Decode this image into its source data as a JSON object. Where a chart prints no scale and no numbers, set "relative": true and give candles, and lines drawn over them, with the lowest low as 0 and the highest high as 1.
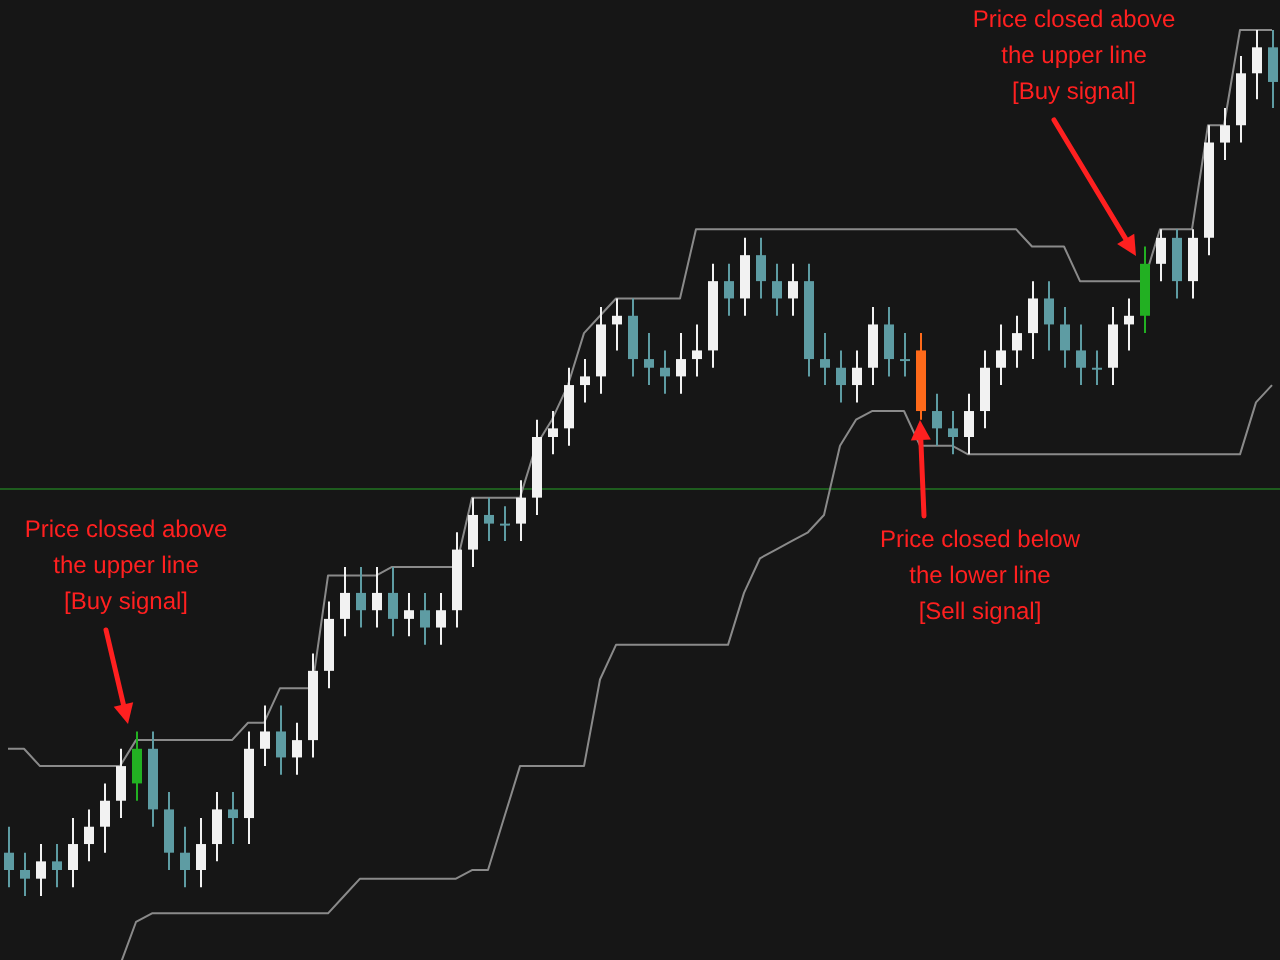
{
  "chart_data": {
    "type": "candlestick",
    "relative": true,
    "categories": [
      null,
      null,
      null,
      null,
      null,
      null,
      null,
      null,
      null,
      null,
      null,
      null,
      null,
      null,
      null,
      null,
      null,
      null,
      null,
      null,
      null,
      null,
      null,
      null,
      null,
      null,
      null,
      null,
      null,
      null,
      null,
      null,
      null,
      null,
      null,
      null,
      null,
      null,
      null,
      null,
      null,
      null,
      null,
      null,
      null,
      null,
      null,
      null,
      null,
      null,
      null,
      null,
      null,
      null,
      null,
      null,
      null,
      null,
      null,
      null,
      null,
      null,
      null,
      null,
      null,
      null,
      null,
      null,
      null,
      null,
      null,
      null,
      null,
      null,
      null,
      null,
      null,
      null,
      null,
      null
    ],
    "ohlc": [
      [
        0.05,
        0.08,
        0.01,
        0.03
      ],
      [
        0.03,
        0.05,
        0.0,
        0.02
      ],
      [
        0.02,
        0.06,
        0.0,
        0.04
      ],
      [
        0.04,
        0.06,
        0.01,
        0.03
      ],
      [
        0.03,
        0.09,
        0.01,
        0.06
      ],
      [
        0.06,
        0.1,
        0.04,
        0.08
      ],
      [
        0.08,
        0.13,
        0.05,
        0.11
      ],
      [
        0.11,
        0.17,
        0.09,
        0.15
      ],
      [
        0.13,
        0.19,
        0.11,
        0.17
      ],
      [
        0.17,
        0.19,
        0.08,
        0.1
      ],
      [
        0.1,
        0.12,
        0.03,
        0.05
      ],
      [
        0.05,
        0.08,
        0.01,
        0.03
      ],
      [
        0.03,
        0.09,
        0.01,
        0.06
      ],
      [
        0.06,
        0.12,
        0.04,
        0.1
      ],
      [
        0.1,
        0.12,
        0.06,
        0.09
      ],
      [
        0.09,
        0.19,
        0.06,
        0.17
      ],
      [
        0.17,
        0.22,
        0.15,
        0.19
      ],
      [
        0.19,
        0.22,
        0.14,
        0.16
      ],
      [
        0.16,
        0.2,
        0.14,
        0.18
      ],
      [
        0.18,
        0.28,
        0.16,
        0.26
      ],
      [
        0.26,
        0.34,
        0.24,
        0.32
      ],
      [
        0.32,
        0.38,
        0.3,
        0.35
      ],
      [
        0.35,
        0.38,
        0.31,
        0.33
      ],
      [
        0.33,
        0.38,
        0.31,
        0.35
      ],
      [
        0.35,
        0.38,
        0.3,
        0.32
      ],
      [
        0.32,
        0.35,
        0.3,
        0.33
      ],
      [
        0.33,
        0.35,
        0.29,
        0.31
      ],
      [
        0.31,
        0.35,
        0.29,
        0.33
      ],
      [
        0.33,
        0.42,
        0.31,
        0.4
      ],
      [
        0.4,
        0.46,
        0.38,
        0.44
      ],
      [
        0.44,
        0.46,
        0.41,
        0.43
      ],
      [
        0.43,
        0.45,
        0.41,
        0.43
      ],
      [
        0.43,
        0.48,
        0.41,
        0.46
      ],
      [
        0.46,
        0.55,
        0.44,
        0.53
      ],
      [
        0.53,
        0.56,
        0.51,
        0.54
      ],
      [
        0.54,
        0.61,
        0.52,
        0.59
      ],
      [
        0.59,
        0.62,
        0.57,
        0.6
      ],
      [
        0.6,
        0.68,
        0.58,
        0.66
      ],
      [
        0.66,
        0.69,
        0.63,
        0.67
      ],
      [
        0.67,
        0.69,
        0.6,
        0.62
      ],
      [
        0.62,
        0.65,
        0.59,
        0.61
      ],
      [
        0.61,
        0.63,
        0.58,
        0.6
      ],
      [
        0.6,
        0.65,
        0.58,
        0.62
      ],
      [
        0.62,
        0.66,
        0.6,
        0.63
      ],
      [
        0.63,
        0.73,
        0.61,
        0.71
      ],
      [
        0.71,
        0.73,
        0.67,
        0.69
      ],
      [
        0.69,
        0.76,
        0.67,
        0.74
      ],
      [
        0.74,
        0.76,
        0.69,
        0.71
      ],
      [
        0.71,
        0.73,
        0.67,
        0.69
      ],
      [
        0.69,
        0.73,
        0.67,
        0.71
      ],
      [
        0.71,
        0.73,
        0.6,
        0.62
      ],
      [
        0.62,
        0.65,
        0.59,
        0.61
      ],
      [
        0.61,
        0.63,
        0.57,
        0.59
      ],
      [
        0.59,
        0.63,
        0.57,
        0.61
      ],
      [
        0.61,
        0.68,
        0.59,
        0.66
      ],
      [
        0.66,
        0.68,
        0.6,
        0.62
      ],
      [
        0.62,
        0.65,
        0.6,
        0.62
      ],
      [
        0.63,
        0.65,
        0.55,
        0.56
      ],
      [
        0.56,
        0.58,
        0.52,
        0.54
      ],
      [
        0.54,
        0.56,
        0.51,
        0.53
      ],
      [
        0.53,
        0.58,
        0.51,
        0.56
      ],
      [
        0.56,
        0.63,
        0.54,
        0.61
      ],
      [
        0.61,
        0.66,
        0.59,
        0.63
      ],
      [
        0.63,
        0.67,
        0.61,
        0.65
      ],
      [
        0.65,
        0.71,
        0.62,
        0.69
      ],
      [
        0.69,
        0.71,
        0.63,
        0.66
      ],
      [
        0.66,
        0.68,
        0.61,
        0.63
      ],
      [
        0.63,
        0.66,
        0.59,
        0.61
      ],
      [
        0.61,
        0.63,
        0.59,
        0.61
      ],
      [
        0.61,
        0.68,
        0.59,
        0.66
      ],
      [
        0.66,
        0.69,
        0.63,
        0.67
      ],
      [
        0.67,
        0.75,
        0.65,
        0.73
      ],
      [
        0.73,
        0.77,
        0.71,
        0.76
      ],
      [
        0.76,
        0.77,
        0.69,
        0.71
      ],
      [
        0.71,
        0.77,
        0.69,
        0.76
      ],
      [
        0.76,
        0.89,
        0.74,
        0.87
      ],
      [
        0.87,
        0.91,
        0.85,
        0.89
      ],
      [
        0.89,
        0.97,
        0.87,
        0.95
      ],
      [
        0.95,
        1.0,
        0.92,
        0.98
      ],
      [
        0.98,
        1.0,
        0.91,
        0.94
      ]
    ],
    "colors": [
      "#5e9ca3",
      "#5e9ca3",
      "#f2f2f2",
      "#5e9ca3",
      "#f2f2f2",
      "#f2f2f2",
      "#f2f2f2",
      "#f2f2f2",
      "#22b022",
      "#5e9ca3",
      "#5e9ca3",
      "#5e9ca3",
      "#f2f2f2",
      "#f2f2f2",
      "#5e9ca3",
      "#f2f2f2",
      "#f2f2f2",
      "#5e9ca3",
      "#f2f2f2",
      "#f2f2f2",
      "#f2f2f2",
      "#f2f2f2",
      "#5e9ca3",
      "#f2f2f2",
      "#5e9ca3",
      "#f2f2f2",
      "#5e9ca3",
      "#f2f2f2",
      "#f2f2f2",
      "#f2f2f2",
      "#5e9ca3",
      "#5e9ca3",
      "#f2f2f2",
      "#f2f2f2",
      "#f2f2f2",
      "#f2f2f2",
      "#f2f2f2",
      "#f2f2f2",
      "#f2f2f2",
      "#5e9ca3",
      "#5e9ca3",
      "#5e9ca3",
      "#f2f2f2",
      "#f2f2f2",
      "#f2f2f2",
      "#5e9ca3",
      "#f2f2f2",
      "#5e9ca3",
      "#5e9ca3",
      "#f2f2f2",
      "#5e9ca3",
      "#5e9ca3",
      "#5e9ca3",
      "#f2f2f2",
      "#f2f2f2",
      "#5e9ca3",
      "#5e9ca3",
      "#ff6a1a",
      "#5e9ca3",
      "#5e9ca3",
      "#f2f2f2",
      "#f2f2f2",
      "#f2f2f2",
      "#f2f2f2",
      "#f2f2f2",
      "#5e9ca3",
      "#5e9ca3",
      "#5e9ca3",
      "#5e9ca3",
      "#f2f2f2",
      "#f2f2f2",
      "#22b022",
      "#f2f2f2",
      "#5e9ca3",
      "#f2f2f2",
      "#f2f2f2",
      "#f2f2f2",
      "#f2f2f2",
      "#f2f2f2",
      "#5e9ca3"
    ],
    "series": [
      {
        "type": "line",
        "color": "#8a8a8a",
        "values": [
          0.17,
          0.17,
          0.15,
          0.15,
          0.15,
          0.15,
          0.15,
          0.15,
          0.18,
          0.18,
          0.18,
          0.18,
          0.18,
          0.18,
          0.18,
          0.2,
          0.2,
          0.24,
          0.24,
          0.24,
          0.37,
          0.37,
          0.37,
          0.37,
          0.38,
          0.38,
          0.38,
          0.38,
          0.38,
          0.46,
          0.46,
          0.46,
          0.46,
          0.52,
          0.55,
          0.59,
          0.65,
          0.67,
          0.69,
          0.69,
          0.69,
          0.69,
          0.69,
          0.77,
          0.77,
          0.77,
          0.77,
          0.77,
          0.77,
          0.77,
          0.77,
          0.77,
          0.77,
          0.77,
          0.77,
          0.77,
          0.77,
          0.77,
          0.77,
          0.77,
          0.77,
          0.77,
          0.77,
          0.77,
          0.75,
          0.75,
          0.75,
          0.71,
          0.71,
          0.71,
          0.71,
          0.71,
          0.77,
          0.77,
          0.77,
          0.89,
          0.89,
          1.0,
          1.0,
          1.0
        ]
      },
      {
        "type": "line",
        "color": "#8a8a8a",
        "values": [
          null,
          null,
          null,
          null,
          null,
          null,
          null,
          -0.08,
          -0.03,
          -0.02,
          -0.02,
          -0.02,
          -0.02,
          -0.02,
          -0.02,
          -0.02,
          -0.02,
          -0.02,
          -0.02,
          -0.02,
          -0.02,
          0.0,
          0.02,
          0.02,
          0.02,
          0.02,
          0.02,
          0.02,
          0.02,
          0.03,
          0.03,
          0.09,
          0.15,
          0.15,
          0.15,
          0.15,
          0.15,
          0.25,
          0.29,
          0.29,
          0.29,
          0.29,
          0.29,
          0.29,
          0.29,
          0.29,
          0.35,
          0.39,
          0.4,
          0.41,
          0.42,
          0.44,
          0.52,
          0.55,
          0.56,
          0.56,
          0.56,
          0.52,
          0.52,
          0.52,
          0.51,
          0.51,
          0.51,
          0.51,
          0.51,
          0.51,
          0.51,
          0.51,
          0.51,
          0.51,
          0.51,
          0.51,
          0.51,
          0.51,
          0.51,
          0.51,
          0.51,
          0.51,
          0.57,
          0.59
        ]
      }
    ],
    "ref_lines": [
      {
        "axis": "y",
        "value": 0.47,
        "color": "#1e5c1e"
      }
    ],
    "annotations": [
      "Price closed above\nthe upper line\n[Buy signal]",
      "Price closed below\nthe lower line\n[Sell signal]",
      "Price closed above\nthe upper line\n[Buy signal]"
    ]
  }
}
